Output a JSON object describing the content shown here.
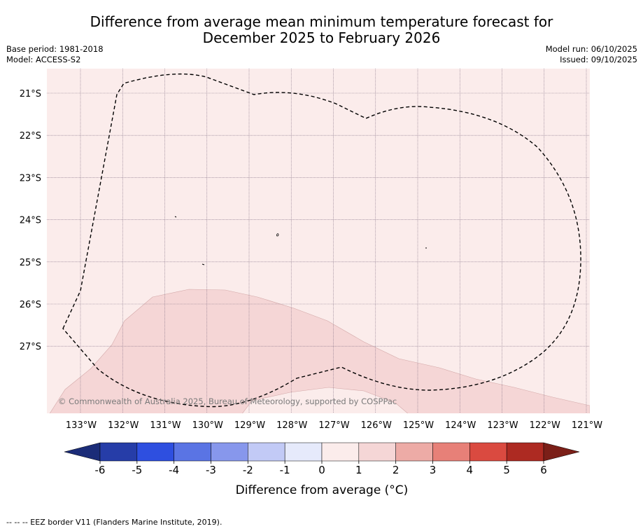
{
  "title": {
    "line1": "Difference from average mean minimum temperature forecast for",
    "line2": "December 2025 to February 2026"
  },
  "meta_left": {
    "base_period": "Base period: 1981-2018",
    "model": "Model: ACCESS-S2"
  },
  "meta_right": {
    "model_run": "Model run: 06/10/2025",
    "issued": "Issued: 09/10/2025"
  },
  "map": {
    "lat_labels": [
      "21°S",
      "22°S",
      "23°S",
      "24°S",
      "25°S",
      "26°S",
      "27°S"
    ],
    "lon_labels": [
      "133°W",
      "132°W",
      "131°W",
      "130°W",
      "129°W",
      "128°W",
      "127°W",
      "126°W",
      "125°W",
      "124°W",
      "123°W",
      "122°W",
      "121°W"
    ],
    "shading": [
      {
        "category": "0 to 1",
        "color": "#fbeceb"
      },
      {
        "category": "1 to 2",
        "color": "#f5d6d6"
      }
    ],
    "copyright": "© Commonwealth of Australia 2025, Bureau of Meteorology, supported by COSPPac"
  },
  "colorbar": {
    "ticks": [
      "-6",
      "-5",
      "-4",
      "-3",
      "-2",
      "-1",
      "0",
      "1",
      "2",
      "3",
      "4",
      "5",
      "6"
    ],
    "colors": [
      "#263da8",
      "#2e4fe0",
      "#5a74e4",
      "#8797ec",
      "#c2caf6",
      "#e6eafb",
      "#fbeceb",
      "#f5d6d6",
      "#edaba6",
      "#e78078",
      "#da4a40",
      "#ad2a22"
    ],
    "extend_low_color": "#1b2c78",
    "extend_high_color": "#7b1f18",
    "title": "Difference from average (°C)"
  },
  "footnote": "--  --  -- EEZ border V11 (Flanders Marine Institute, 2019)."
}
